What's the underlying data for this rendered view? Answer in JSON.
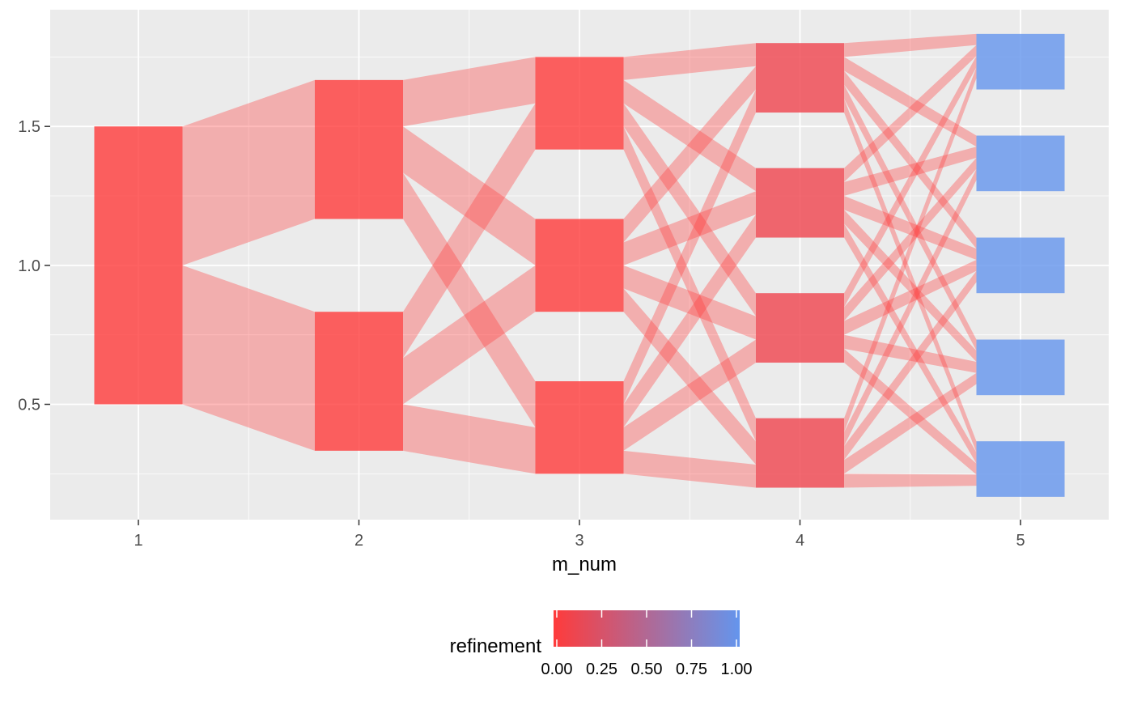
{
  "chart_data": {
    "type": "sankey",
    "title": "",
    "xlabel": "m_num",
    "ylabel": "",
    "xlim": [
      0.6,
      5.4
    ],
    "ylim": [
      0.085,
      1.92
    ],
    "x_ticks": [
      "1",
      "2",
      "3",
      "4",
      "5"
    ],
    "y_ticks": [
      "0.5",
      "1.0",
      "1.5"
    ],
    "y_tick_values": [
      0.5,
      1.0,
      1.5
    ],
    "y_minor_values": [
      0.25,
      0.75,
      1.25,
      1.75
    ],
    "x_minor_values": [
      1.5,
      2.5,
      3.5,
      4.5
    ],
    "grid": true,
    "node_half_width": 0.2,
    "flow_opacity": 0.35,
    "node_opacity": 0.8,
    "nodes": [
      {
        "m_num": 1,
        "ymin": 0.5,
        "ymax": 1.5,
        "refinement": 0.0
      },
      {
        "m_num": 2,
        "ymin": 1.167,
        "ymax": 1.667,
        "refinement": 0.0
      },
      {
        "m_num": 2,
        "ymin": 0.333,
        "ymax": 0.833,
        "refinement": 0.0
      },
      {
        "m_num": 3,
        "ymin": 1.417,
        "ymax": 1.75,
        "refinement": 0.0
      },
      {
        "m_num": 3,
        "ymin": 0.833,
        "ymax": 1.167,
        "refinement": 0.0
      },
      {
        "m_num": 3,
        "ymin": 0.25,
        "ymax": 0.583,
        "refinement": 0.0
      },
      {
        "m_num": 4,
        "ymin": 1.55,
        "ymax": 1.8,
        "refinement": 0.1
      },
      {
        "m_num": 4,
        "ymin": 1.1,
        "ymax": 1.35,
        "refinement": 0.1
      },
      {
        "m_num": 4,
        "ymin": 0.65,
        "ymax": 0.9,
        "refinement": 0.1
      },
      {
        "m_num": 4,
        "ymin": 0.2,
        "ymax": 0.45,
        "refinement": 0.1
      },
      {
        "m_num": 5,
        "ymin": 1.633,
        "ymax": 1.833,
        "refinement": 1.0
      },
      {
        "m_num": 5,
        "ymin": 1.267,
        "ymax": 1.467,
        "refinement": 1.0
      },
      {
        "m_num": 5,
        "ymin": 0.9,
        "ymax": 1.1,
        "refinement": 1.0
      },
      {
        "m_num": 5,
        "ymin": 0.533,
        "ymax": 0.733,
        "refinement": 1.0
      },
      {
        "m_num": 5,
        "ymin": 0.167,
        "ymax": 0.367,
        "refinement": 1.0
      }
    ],
    "flows": [
      {
        "from_m": 1,
        "to_m": 2,
        "from_range": [
          1.0,
          1.5
        ],
        "to_range": [
          1.167,
          1.667
        ]
      },
      {
        "from_m": 1,
        "to_m": 2,
        "from_range": [
          0.5,
          1.0
        ],
        "to_range": [
          0.333,
          0.833
        ]
      },
      {
        "from_m": 2,
        "to_m": 3,
        "from_range": [
          1.5,
          1.667
        ],
        "to_range": [
          1.583,
          1.75
        ]
      },
      {
        "from_m": 2,
        "to_m": 3,
        "from_range": [
          1.333,
          1.5
        ],
        "to_range": [
          1.0,
          1.167
        ]
      },
      {
        "from_m": 2,
        "to_m": 3,
        "from_range": [
          1.167,
          1.333
        ],
        "to_range": [
          0.417,
          0.583
        ]
      },
      {
        "from_m": 2,
        "to_m": 3,
        "from_range": [
          0.667,
          0.833
        ],
        "to_range": [
          1.417,
          1.583
        ]
      },
      {
        "from_m": 2,
        "to_m": 3,
        "from_range": [
          0.5,
          0.667
        ],
        "to_range": [
          0.833,
          1.0
        ]
      },
      {
        "from_m": 2,
        "to_m": 3,
        "from_range": [
          0.333,
          0.5
        ],
        "to_range": [
          0.25,
          0.417
        ]
      },
      {
        "from_m": 3,
        "to_m": 4,
        "from_range": [
          1.667,
          1.75
        ],
        "to_range": [
          1.717,
          1.8
        ]
      },
      {
        "from_m": 3,
        "to_m": 4,
        "from_range": [
          1.583,
          1.667
        ],
        "to_range": [
          1.267,
          1.35
        ]
      },
      {
        "from_m": 3,
        "to_m": 4,
        "from_range": [
          1.5,
          1.583
        ],
        "to_range": [
          0.817,
          0.9
        ]
      },
      {
        "from_m": 3,
        "to_m": 4,
        "from_range": [
          1.417,
          1.5
        ],
        "to_range": [
          0.367,
          0.45
        ]
      },
      {
        "from_m": 3,
        "to_m": 4,
        "from_range": [
          1.083,
          1.167
        ],
        "to_range": [
          1.633,
          1.717
        ]
      },
      {
        "from_m": 3,
        "to_m": 4,
        "from_range": [
          1.0,
          1.083
        ],
        "to_range": [
          1.183,
          1.267
        ]
      },
      {
        "from_m": 3,
        "to_m": 4,
        "from_range": [
          0.917,
          1.0
        ],
        "to_range": [
          0.733,
          0.817
        ]
      },
      {
        "from_m": 3,
        "to_m": 4,
        "from_range": [
          0.833,
          0.917
        ],
        "to_range": [
          0.283,
          0.367
        ]
      },
      {
        "from_m": 3,
        "to_m": 4,
        "from_range": [
          0.5,
          0.583
        ],
        "to_range": [
          1.55,
          1.633
        ]
      },
      {
        "from_m": 3,
        "to_m": 4,
        "from_range": [
          0.417,
          0.5
        ],
        "to_range": [
          1.1,
          1.183
        ]
      },
      {
        "from_m": 3,
        "to_m": 4,
        "from_range": [
          0.333,
          0.417
        ],
        "to_range": [
          0.65,
          0.733
        ]
      },
      {
        "from_m": 3,
        "to_m": 4,
        "from_range": [
          0.25,
          0.333
        ],
        "to_range": [
          0.2,
          0.283
        ]
      },
      {
        "from_m": 4,
        "to_m": 5,
        "from_range": [
          1.75,
          1.8
        ],
        "to_range": [
          1.793,
          1.833
        ]
      },
      {
        "from_m": 4,
        "to_m": 5,
        "from_range": [
          1.7,
          1.75
        ],
        "to_range": [
          1.427,
          1.467
        ]
      },
      {
        "from_m": 4,
        "to_m": 5,
        "from_range": [
          1.65,
          1.7
        ],
        "to_range": [
          1.06,
          1.1
        ]
      },
      {
        "from_m": 4,
        "to_m": 5,
        "from_range": [
          1.6,
          1.65
        ],
        "to_range": [
          0.693,
          0.733
        ]
      },
      {
        "from_m": 4,
        "to_m": 5,
        "from_range": [
          1.55,
          1.6
        ],
        "to_range": [
          0.327,
          0.367
        ]
      },
      {
        "from_m": 4,
        "to_m": 5,
        "from_range": [
          1.3,
          1.35
        ],
        "to_range": [
          1.753,
          1.793
        ]
      },
      {
        "from_m": 4,
        "to_m": 5,
        "from_range": [
          1.25,
          1.3
        ],
        "to_range": [
          1.387,
          1.427
        ]
      },
      {
        "from_m": 4,
        "to_m": 5,
        "from_range": [
          1.2,
          1.25
        ],
        "to_range": [
          1.02,
          1.06
        ]
      },
      {
        "from_m": 4,
        "to_m": 5,
        "from_range": [
          1.15,
          1.2
        ],
        "to_range": [
          0.653,
          0.693
        ]
      },
      {
        "from_m": 4,
        "to_m": 5,
        "from_range": [
          1.1,
          1.15
        ],
        "to_range": [
          0.287,
          0.327
        ]
      },
      {
        "from_m": 4,
        "to_m": 5,
        "from_range": [
          0.85,
          0.9
        ],
        "to_range": [
          1.713,
          1.753
        ]
      },
      {
        "from_m": 4,
        "to_m": 5,
        "from_range": [
          0.8,
          0.85
        ],
        "to_range": [
          1.347,
          1.387
        ]
      },
      {
        "from_m": 4,
        "to_m": 5,
        "from_range": [
          0.75,
          0.8
        ],
        "to_range": [
          0.98,
          1.02
        ]
      },
      {
        "from_m": 4,
        "to_m": 5,
        "from_range": [
          0.7,
          0.75
        ],
        "to_range": [
          0.613,
          0.653
        ]
      },
      {
        "from_m": 4,
        "to_m": 5,
        "from_range": [
          0.65,
          0.7
        ],
        "to_range": [
          0.247,
          0.287
        ]
      },
      {
        "from_m": 4,
        "to_m": 5,
        "from_range": [
          0.4,
          0.45
        ],
        "to_range": [
          1.673,
          1.713
        ]
      },
      {
        "from_m": 4,
        "to_m": 5,
        "from_range": [
          0.35,
          0.4
        ],
        "to_range": [
          1.307,
          1.347
        ]
      },
      {
        "from_m": 4,
        "to_m": 5,
        "from_range": [
          0.3,
          0.35
        ],
        "to_range": [
          0.94,
          0.98
        ]
      },
      {
        "from_m": 4,
        "to_m": 5,
        "from_range": [
          0.25,
          0.3
        ],
        "to_range": [
          0.573,
          0.613
        ]
      },
      {
        "from_m": 4,
        "to_m": 5,
        "from_range": [
          0.2,
          0.25
        ],
        "to_range": [
          0.207,
          0.247
        ]
      }
    ],
    "legend": {
      "title": "refinement",
      "labels": [
        "0.00",
        "0.25",
        "0.50",
        "0.75",
        "1.00"
      ],
      "values": [
        0.0,
        0.25,
        0.5,
        0.75,
        1.0
      ],
      "placement": "bottom",
      "low_color": "#ff3b3b",
      "high_color": "#6495ed"
    },
    "colors": {
      "panel_bg": "#ebebeb",
      "grid_major": "#ffffff",
      "tick_color": "#333333",
      "text_color": "#4d4d4d",
      "title_color": "#000000"
    }
  }
}
